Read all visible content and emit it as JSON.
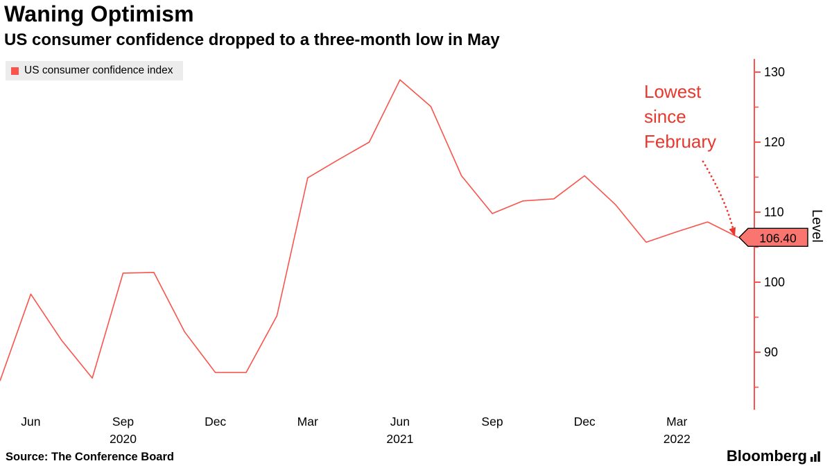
{
  "header": {
    "title": "Waning Optimism",
    "subtitle": "US consumer confidence dropped to a three-month low in May"
  },
  "legend": {
    "label": "US consumer confidence index"
  },
  "annotation": {
    "text": "Lowest\nsince\nFebruary"
  },
  "axis": {
    "y_title": "Level"
  },
  "source": {
    "label": "Source: The Conference Board"
  },
  "branding": {
    "name": "Bloomberg"
  },
  "colors": {
    "line": "#f9534b",
    "axis": "#f9534b",
    "annotation": "#e8382d",
    "tag_bg": "#f8766f",
    "tag_border": "#000000",
    "legend_bg": "#ececec",
    "text": "#000000"
  },
  "chart_data": {
    "type": "line",
    "title": "Waning Optimism",
    "subtitle": "US consumer confidence dropped to a three-month low in May",
    "ylabel": "Level",
    "xlabel": "",
    "grid": false,
    "legend_position": "top-left",
    "ylim": [
      82,
      132
    ],
    "yticks_major": [
      90,
      100,
      110,
      120,
      130
    ],
    "yticks_minor": [
      85,
      95,
      105,
      115,
      125
    ],
    "x_months": [
      "May 2020",
      "Jun 2020",
      "Jul 2020",
      "Aug 2020",
      "Sep 2020",
      "Oct 2020",
      "Nov 2020",
      "Dec 2020",
      "Jan 2021",
      "Feb 2021",
      "Mar 2021",
      "Apr 2021",
      "May 2021",
      "Jun 2021",
      "Jul 2021",
      "Aug 2021",
      "Sep 2021",
      "Oct 2021",
      "Nov 2021",
      "Dec 2021",
      "Jan 2022",
      "Feb 2022",
      "Mar 2022",
      "Apr 2022",
      "May 2022"
    ],
    "series": [
      {
        "name": "US consumer confidence index",
        "values": [
          85.9,
          98.3,
          91.7,
          86.3,
          101.3,
          101.4,
          92.9,
          87.1,
          87.1,
          95.2,
          114.9,
          117.5,
          120.0,
          128.9,
          125.1,
          115.2,
          109.8,
          111.6,
          111.9,
          115.2,
          111.1,
          105.7,
          107.2,
          108.6,
          106.4
        ]
      }
    ],
    "xticks": [
      {
        "index": 1,
        "label": "Jun"
      },
      {
        "index": 4,
        "label": "Sep",
        "year": "2020"
      },
      {
        "index": 7,
        "label": "Dec"
      },
      {
        "index": 10,
        "label": "Mar"
      },
      {
        "index": 13,
        "label": "Jun",
        "year": "2021"
      },
      {
        "index": 16,
        "label": "Sep"
      },
      {
        "index": 19,
        "label": "Dec"
      },
      {
        "index": 22,
        "label": "Mar",
        "year": "2022"
      }
    ],
    "last_value": 106.4,
    "last_label": "106.40"
  }
}
